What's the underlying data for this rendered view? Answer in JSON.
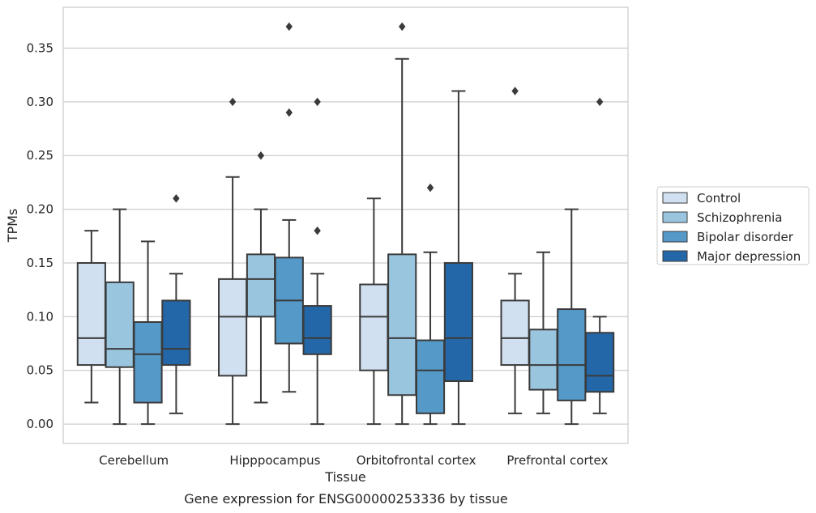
{
  "chart_data": {
    "type": "box",
    "xlabel": "Tissue",
    "ylabel": "TPMs",
    "caption": "Gene expression for ENSG00000253336 by tissue",
    "ylim": [
      -0.018,
      0.388
    ],
    "yticks": [
      0.0,
      0.05,
      0.1,
      0.15,
      0.2,
      0.25,
      0.3,
      0.35
    ],
    "ytick_labels": [
      "0.00",
      "0.05",
      "0.10",
      "0.15",
      "0.20",
      "0.25",
      "0.30",
      "0.35"
    ],
    "categories": [
      "Cerebellum",
      "Hipppocampus",
      "Orbitofrontal cortex",
      "Prefrontal cortex"
    ],
    "grid": "horizontal",
    "legend_position": "right",
    "series": [
      {
        "name": "Control",
        "color": "#d0e0f0",
        "boxes": [
          {
            "min": 0.02,
            "q1": 0.055,
            "median": 0.08,
            "q3": 0.15,
            "max": 0.18,
            "outliers": []
          },
          {
            "min": 0.0,
            "q1": 0.045,
            "median": 0.1,
            "q3": 0.135,
            "max": 0.23,
            "outliers": [
              0.3
            ]
          },
          {
            "min": 0.0,
            "q1": 0.05,
            "median": 0.1,
            "q3": 0.13,
            "max": 0.21,
            "outliers": []
          },
          {
            "min": 0.01,
            "q1": 0.055,
            "median": 0.08,
            "q3": 0.115,
            "max": 0.14,
            "outliers": [
              0.31
            ]
          }
        ]
      },
      {
        "name": "Schizophrenia",
        "color": "#9ac5df",
        "boxes": [
          {
            "min": 0.0,
            "q1": 0.053,
            "median": 0.07,
            "q3": 0.132,
            "max": 0.2,
            "outliers": []
          },
          {
            "min": 0.02,
            "q1": 0.1,
            "median": 0.135,
            "q3": 0.158,
            "max": 0.2,
            "outliers": [
              0.25
            ]
          },
          {
            "min": 0.0,
            "q1": 0.027,
            "median": 0.08,
            "q3": 0.158,
            "max": 0.34,
            "outliers": [
              0.37
            ]
          },
          {
            "min": 0.01,
            "q1": 0.032,
            "median": 0.055,
            "q3": 0.088,
            "max": 0.16,
            "outliers": []
          }
        ]
      },
      {
        "name": "Bipolar disorder",
        "color": "#5499c7",
        "boxes": [
          {
            "min": 0.0,
            "q1": 0.02,
            "median": 0.065,
            "q3": 0.095,
            "max": 0.17,
            "outliers": []
          },
          {
            "min": 0.03,
            "q1": 0.075,
            "median": 0.115,
            "q3": 0.155,
            "max": 0.19,
            "outliers": [
              0.29,
              0.37
            ]
          },
          {
            "min": 0.0,
            "q1": 0.01,
            "median": 0.05,
            "q3": 0.078,
            "max": 0.16,
            "outliers": [
              0.22
            ]
          },
          {
            "min": 0.0,
            "q1": 0.022,
            "median": 0.055,
            "q3": 0.107,
            "max": 0.2,
            "outliers": []
          }
        ]
      },
      {
        "name": "Major depression",
        "color": "#2467a8",
        "boxes": [
          {
            "min": 0.01,
            "q1": 0.055,
            "median": 0.07,
            "q3": 0.115,
            "max": 0.14,
            "outliers": [
              0.21
            ]
          },
          {
            "min": 0.0,
            "q1": 0.065,
            "median": 0.08,
            "q3": 0.11,
            "max": 0.14,
            "outliers": [
              0.18,
              0.3
            ]
          },
          {
            "min": 0.0,
            "q1": 0.04,
            "median": 0.08,
            "q3": 0.15,
            "max": 0.31,
            "outliers": []
          },
          {
            "min": 0.01,
            "q1": 0.03,
            "median": 0.045,
            "q3": 0.085,
            "max": 0.1,
            "outliers": [
              0.3
            ]
          }
        ]
      }
    ]
  }
}
